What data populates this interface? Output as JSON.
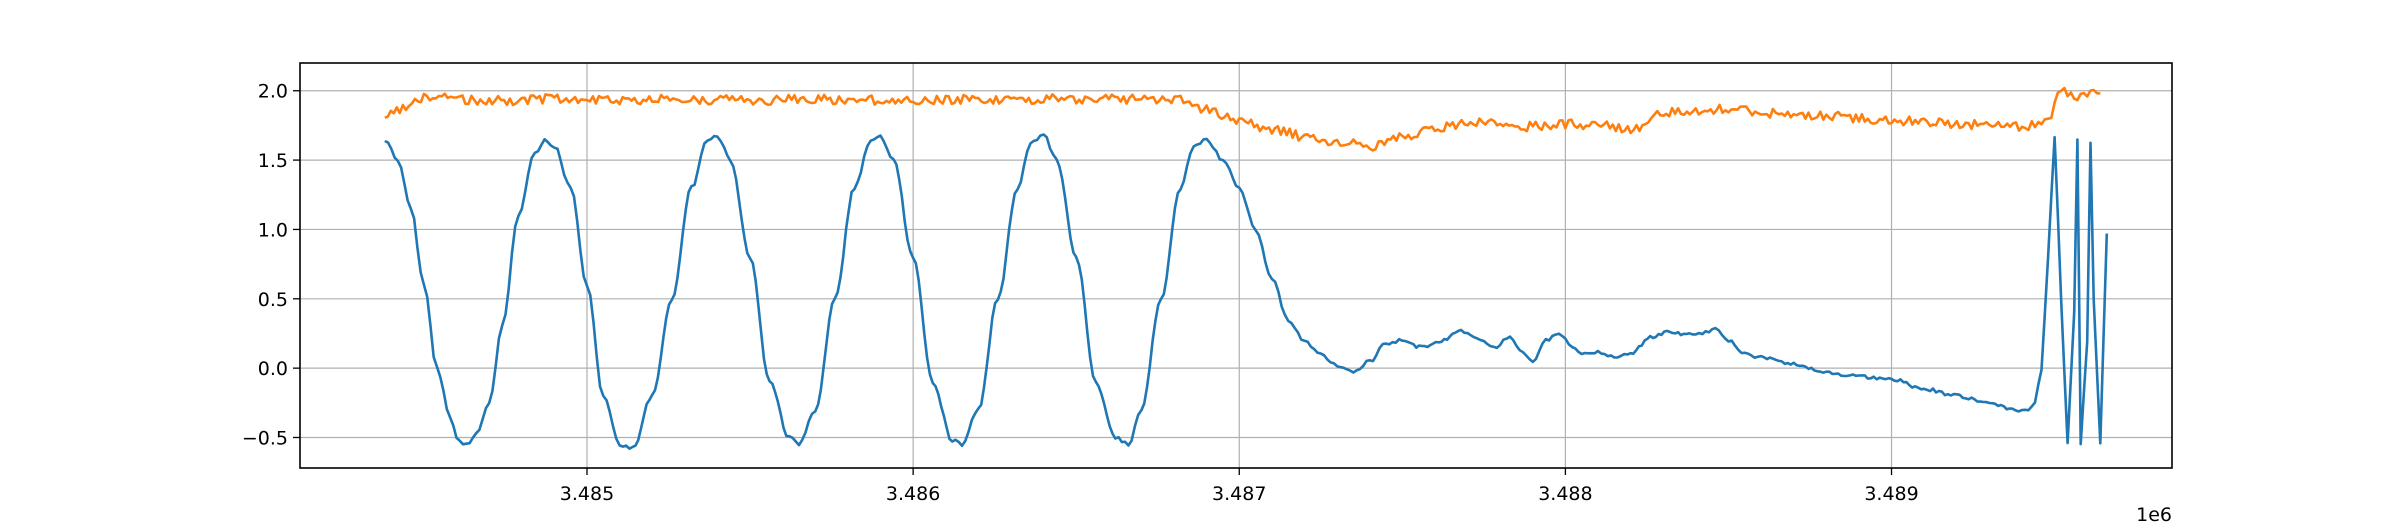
{
  "chart_data": {
    "type": "line",
    "title": "",
    "xlabel": "",
    "ylabel": "",
    "x_offset_label": "1e6",
    "xlim": [
      3484120,
      3489860
    ],
    "ylim": [
      -0.72,
      2.2
    ],
    "xticks": [
      3485000,
      3486000,
      3487000,
      3488000,
      3489000
    ],
    "xtick_labels": [
      "3.485",
      "3.486",
      "3.487",
      "3.488",
      "3.489"
    ],
    "yticks": [
      -0.5,
      0.0,
      0.5,
      1.0,
      1.5,
      2.0
    ],
    "ytick_labels": [
      "−0.5",
      "0.0",
      "0.5",
      "1.0",
      "1.5",
      "2.0"
    ],
    "grid": true,
    "legend": "none",
    "series": [
      {
        "color": "#1f77b4",
        "x": [
          3484380,
          3484420,
          3484460,
          3484500,
          3484540,
          3484580,
          3484600,
          3484630,
          3484660,
          3484700,
          3484740,
          3484790,
          3484840,
          3484870,
          3484900,
          3484950,
          3485000,
          3485050,
          3485100,
          3485140,
          3485200,
          3485260,
          3485320,
          3485370,
          3485400,
          3485440,
          3485500,
          3485560,
          3485620,
          3485650,
          3485700,
          3485760,
          3485820,
          3485870,
          3485900,
          3485940,
          3486000,
          3486060,
          3486120,
          3486150,
          3486200,
          3486260,
          3486320,
          3486360,
          3486400,
          3486440,
          3486500,
          3486560,
          3486620,
          3486660,
          3486700,
          3486760,
          3486820,
          3486860,
          3486900,
          3486950,
          3487000,
          3487050,
          3487100,
          3487150,
          3487200,
          3487250,
          3487300,
          3487350,
          3487400,
          3487450,
          3487500,
          3487560,
          3487620,
          3487680,
          3487730,
          3487780,
          3487830,
          3487870,
          3487900,
          3487940,
          3487980,
          3488020,
          3488060,
          3488100,
          3488150,
          3488200,
          3488260,
          3488320,
          3488380,
          3488420,
          3488460,
          3488500,
          3488550,
          3488600,
          3488700,
          3488800,
          3488900,
          3489000,
          3489100,
          3489200,
          3489300,
          3489380,
          3489420,
          3489440,
          3489460,
          3489480,
          3489500,
          3489520,
          3489540,
          3489560,
          3489570,
          3489580,
          3489600,
          3489610,
          3489620,
          3489640,
          3489660
        ],
        "y": [
          1.64,
          1.5,
          1.15,
          0.6,
          0.0,
          -0.35,
          -0.5,
          -0.55,
          -0.48,
          -0.25,
          0.3,
          1.1,
          1.55,
          1.64,
          1.6,
          1.3,
          0.6,
          -0.2,
          -0.55,
          -0.58,
          -0.2,
          0.5,
          1.3,
          1.65,
          1.67,
          1.5,
          0.8,
          -0.1,
          -0.5,
          -0.55,
          -0.3,
          0.5,
          1.3,
          1.64,
          1.67,
          1.5,
          0.8,
          -0.1,
          -0.52,
          -0.55,
          -0.3,
          0.5,
          1.3,
          1.62,
          1.68,
          1.5,
          0.8,
          -0.1,
          -0.5,
          -0.55,
          -0.3,
          0.5,
          1.3,
          1.6,
          1.65,
          1.5,
          1.3,
          1.0,
          0.65,
          0.35,
          0.2,
          0.1,
          0.02,
          -0.03,
          0.05,
          0.18,
          0.2,
          0.15,
          0.2,
          0.27,
          0.22,
          0.15,
          0.22,
          0.12,
          0.05,
          0.2,
          0.26,
          0.15,
          0.1,
          0.12,
          0.08,
          0.1,
          0.22,
          0.26,
          0.24,
          0.25,
          0.28,
          0.2,
          0.1,
          0.08,
          0.03,
          -0.03,
          -0.06,
          -0.08,
          -0.15,
          -0.2,
          -0.25,
          -0.3,
          -0.3,
          -0.25,
          0.0,
          0.8,
          1.67,
          0.5,
          -0.55,
          0.4,
          1.65,
          -0.55,
          0.2,
          1.63,
          0.5,
          -0.55,
          0.97
        ]
      },
      {
        "color": "#ff7f0e",
        "x": [
          3484380,
          3484500,
          3484700,
          3484900,
          3485100,
          3485300,
          3485500,
          3485700,
          3485900,
          3486100,
          3486300,
          3486500,
          3486700,
          3486820,
          3486900,
          3487000,
          3487100,
          3487200,
          3487300,
          3487350,
          3487400,
          3487500,
          3487600,
          3487700,
          3487800,
          3487900,
          3488000,
          3488100,
          3488200,
          3488300,
          3488400,
          3488500,
          3488600,
          3488700,
          3488800,
          3488900,
          3489000,
          3489100,
          3489200,
          3489300,
          3489400,
          3489440,
          3489480,
          3489520,
          3489560,
          3489600,
          3489640
        ],
        "y": [
          1.82,
          1.95,
          1.93,
          1.94,
          1.93,
          1.94,
          1.93,
          1.94,
          1.93,
          1.94,
          1.94,
          1.94,
          1.94,
          1.93,
          1.86,
          1.78,
          1.72,
          1.67,
          1.63,
          1.62,
          1.6,
          1.66,
          1.74,
          1.76,
          1.78,
          1.74,
          1.76,
          1.75,
          1.72,
          1.84,
          1.86,
          1.87,
          1.84,
          1.83,
          1.82,
          1.8,
          1.78,
          1.78,
          1.76,
          1.75,
          1.74,
          1.75,
          1.8,
          2.0,
          1.95,
          1.97,
          1.98
        ]
      }
    ]
  }
}
